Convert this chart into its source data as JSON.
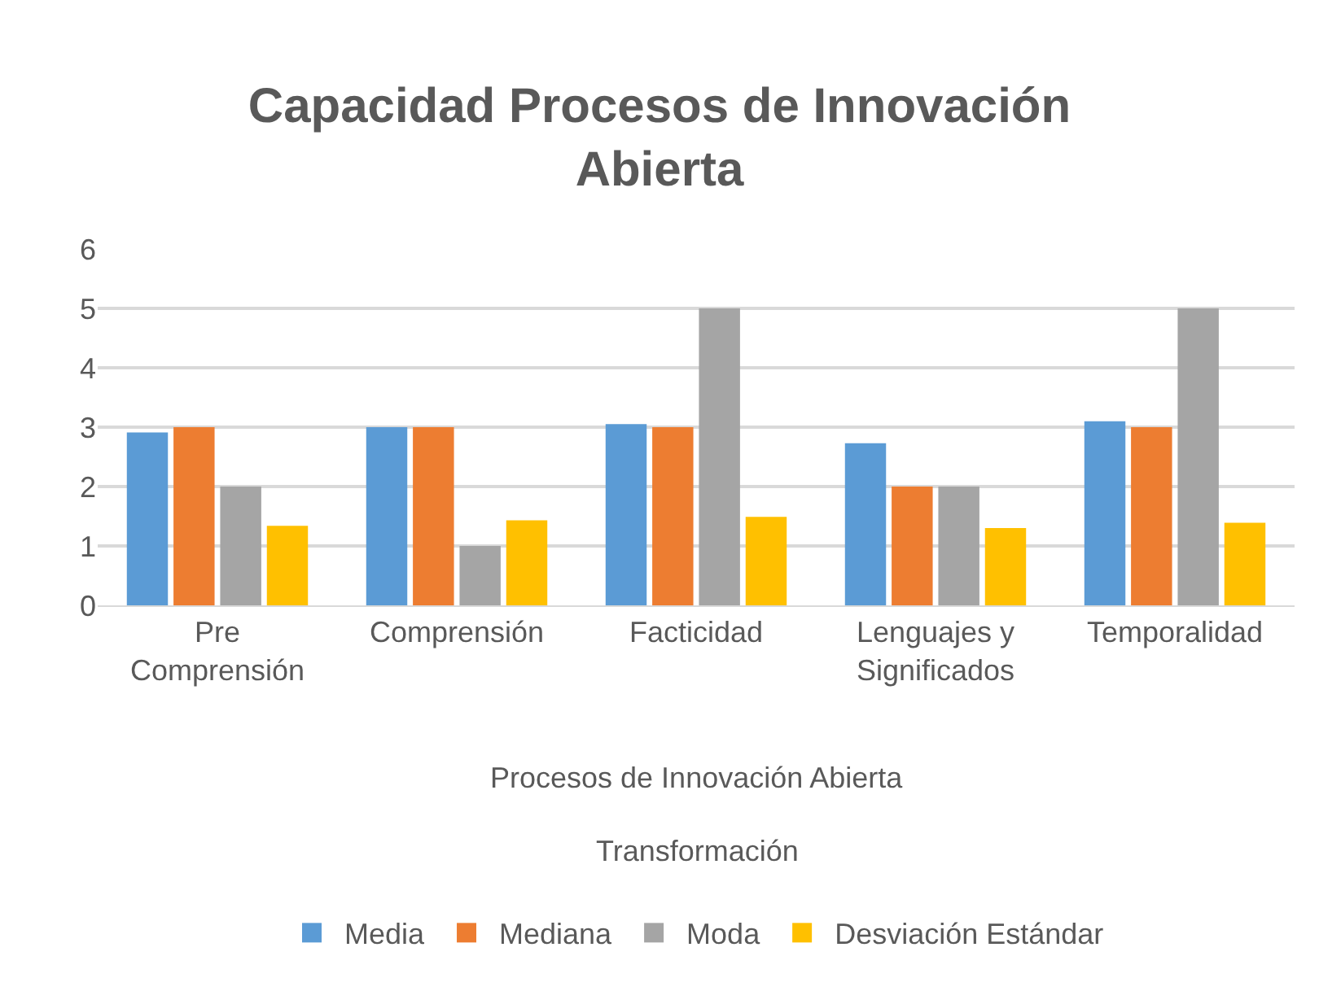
{
  "chart_data": {
    "type": "bar",
    "title": "Capacidad Procesos de Innovación Abierta",
    "categories": [
      "Pre Comprensión",
      "Comprensión",
      "Facticidad",
      "Lenguajes y Significados",
      "Temporalidad"
    ],
    "series": [
      {
        "name": "Media",
        "color": "#5b9bd5",
        "values": [
          2.91,
          3.0,
          3.05,
          2.73,
          3.1
        ]
      },
      {
        "name": "Mediana",
        "color": "#ed7d31",
        "values": [
          3,
          3,
          3,
          2,
          3
        ]
      },
      {
        "name": "Moda",
        "color": "#a5a5a5",
        "values": [
          2,
          1,
          5,
          2,
          5
        ]
      },
      {
        "name": "Desviación Estándar",
        "color": "#ffc000",
        "values": [
          1.34,
          1.43,
          1.49,
          1.3,
          1.39
        ]
      }
    ],
    "xlabel": "Procesos de Innovación Abierta",
    "annotations": [
      "Transformación"
    ],
    "ylim": [
      0,
      6
    ],
    "yticks": [
      0,
      1,
      2,
      3,
      4,
      5,
      6
    ],
    "grid": "y",
    "legend": "bottom"
  }
}
